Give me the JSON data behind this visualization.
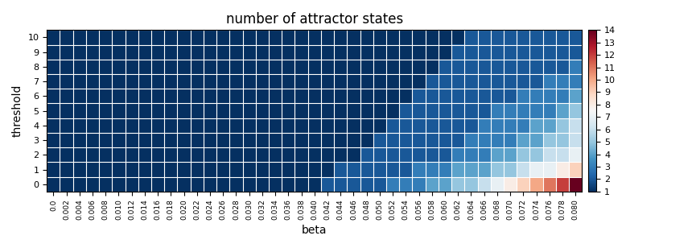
{
  "title": "number of attractor states",
  "xlabel": "beta",
  "ylabel": "threshold",
  "beta_values": [
    0.0,
    0.002,
    0.004,
    0.006,
    0.008,
    0.01,
    0.012,
    0.014,
    0.016,
    0.018,
    0.02,
    0.022,
    0.024,
    0.026,
    0.028,
    0.03,
    0.032,
    0.034,
    0.036,
    0.038,
    0.04,
    0.042,
    0.044,
    0.046,
    0.048,
    0.05,
    0.052,
    0.054,
    0.056,
    0.058,
    0.06,
    0.062,
    0.064,
    0.066,
    0.068,
    0.07,
    0.072,
    0.074,
    0.076,
    0.078,
    0.08
  ],
  "threshold_values": [
    0,
    1,
    2,
    3,
    4,
    5,
    6,
    7,
    8,
    9,
    10
  ],
  "vmin": 1,
  "vmax": 14,
  "colormap": "RdBu_r",
  "grid_color": "white",
  "figsize": [
    8.65,
    3.08
  ],
  "dpi": 100,
  "beta_label_format": "0.0",
  "data": [
    [
      1,
      1,
      1,
      1,
      1,
      1,
      1,
      1,
      1,
      1,
      1,
      1,
      1,
      1,
      1,
      1,
      1,
      1,
      1,
      1,
      1,
      2,
      2,
      2,
      2,
      2,
      3,
      3,
      3,
      4,
      4,
      5,
      5,
      6,
      7,
      8,
      9,
      10,
      11,
      12,
      14
    ],
    [
      1,
      1,
      1,
      1,
      1,
      1,
      1,
      1,
      1,
      1,
      1,
      1,
      1,
      1,
      1,
      1,
      1,
      1,
      1,
      1,
      1,
      1,
      2,
      2,
      2,
      2,
      2,
      2,
      3,
      3,
      3,
      4,
      4,
      4,
      5,
      5,
      6,
      7,
      7,
      8,
      9
    ],
    [
      1,
      1,
      1,
      1,
      1,
      1,
      1,
      1,
      1,
      1,
      1,
      1,
      1,
      1,
      1,
      1,
      1,
      1,
      1,
      1,
      1,
      1,
      1,
      1,
      2,
      2,
      2,
      2,
      2,
      2,
      2,
      3,
      3,
      3,
      4,
      4,
      5,
      5,
      6,
      6,
      7
    ],
    [
      1,
      1,
      1,
      1,
      1,
      1,
      1,
      1,
      1,
      1,
      1,
      1,
      1,
      1,
      1,
      1,
      1,
      1,
      1,
      1,
      1,
      1,
      1,
      1,
      1,
      2,
      2,
      2,
      2,
      2,
      2,
      2,
      3,
      3,
      3,
      3,
      4,
      4,
      5,
      5,
      6
    ],
    [
      1,
      1,
      1,
      1,
      1,
      1,
      1,
      1,
      1,
      1,
      1,
      1,
      1,
      1,
      1,
      1,
      1,
      1,
      1,
      1,
      1,
      1,
      1,
      1,
      1,
      1,
      2,
      2,
      2,
      2,
      2,
      2,
      2,
      3,
      3,
      3,
      3,
      4,
      4,
      5,
      6
    ],
    [
      1,
      1,
      1,
      1,
      1,
      1,
      1,
      1,
      1,
      1,
      1,
      1,
      1,
      1,
      1,
      1,
      1,
      1,
      1,
      1,
      1,
      1,
      1,
      1,
      1,
      1,
      1,
      2,
      2,
      2,
      2,
      2,
      2,
      2,
      3,
      3,
      3,
      3,
      3,
      4,
      5
    ],
    [
      1,
      1,
      1,
      1,
      1,
      1,
      1,
      1,
      1,
      1,
      1,
      1,
      1,
      1,
      1,
      1,
      1,
      1,
      1,
      1,
      1,
      1,
      1,
      1,
      1,
      1,
      1,
      1,
      2,
      2,
      2,
      2,
      2,
      2,
      2,
      2,
      3,
      3,
      3,
      3,
      4
    ],
    [
      1,
      1,
      1,
      1,
      1,
      1,
      1,
      1,
      1,
      1,
      1,
      1,
      1,
      1,
      1,
      1,
      1,
      1,
      1,
      1,
      1,
      1,
      1,
      1,
      1,
      1,
      1,
      1,
      1,
      2,
      2,
      2,
      2,
      2,
      2,
      2,
      2,
      2,
      3,
      3,
      3
    ],
    [
      1,
      1,
      1,
      1,
      1,
      1,
      1,
      1,
      1,
      1,
      1,
      1,
      1,
      1,
      1,
      1,
      1,
      1,
      1,
      1,
      1,
      1,
      1,
      1,
      1,
      1,
      1,
      1,
      1,
      1,
      2,
      2,
      2,
      2,
      2,
      2,
      2,
      2,
      2,
      2,
      3
    ],
    [
      1,
      1,
      1,
      1,
      1,
      1,
      1,
      1,
      1,
      1,
      1,
      1,
      1,
      1,
      1,
      1,
      1,
      1,
      1,
      1,
      1,
      1,
      1,
      1,
      1,
      1,
      1,
      1,
      1,
      1,
      1,
      2,
      2,
      2,
      2,
      2,
      2,
      2,
      2,
      2,
      2
    ],
    [
      1,
      1,
      1,
      1,
      1,
      1,
      1,
      1,
      1,
      1,
      1,
      1,
      1,
      1,
      1,
      1,
      1,
      1,
      1,
      1,
      1,
      1,
      1,
      1,
      1,
      1,
      1,
      1,
      1,
      1,
      1,
      1,
      2,
      2,
      2,
      2,
      2,
      2,
      2,
      2,
      2
    ]
  ]
}
